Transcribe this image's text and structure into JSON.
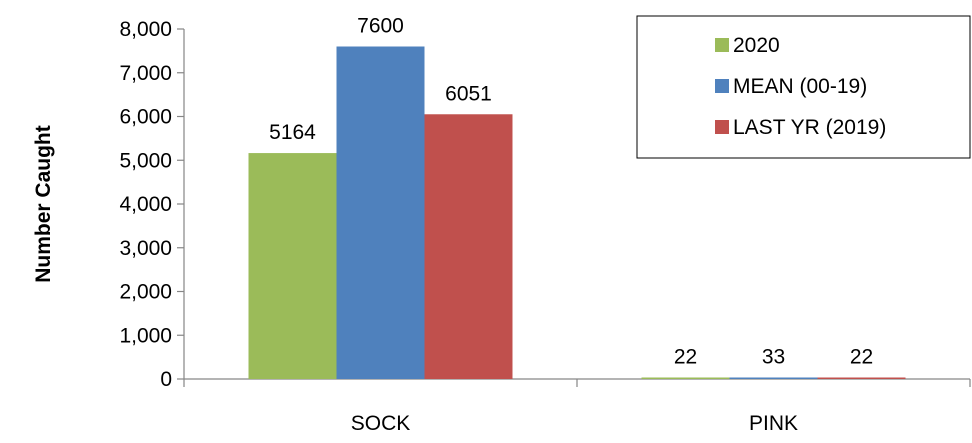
{
  "chart_data": {
    "type": "bar",
    "categories": [
      "SOCK",
      "PINK"
    ],
    "series": [
      {
        "name": "2020",
        "values": [
          5164,
          22
        ],
        "color": "#9bbb59",
        "labels": [
          "5164",
          "22"
        ]
      },
      {
        "name": "MEAN (00-19)",
        "values": [
          7600,
          33
        ],
        "color": "#4f81bd",
        "labels": [
          "7600",
          "33"
        ]
      },
      {
        "name": "LAST YR (2019)",
        "values": [
          6051,
          22
        ],
        "color": "#c0504d",
        "labels": [
          "6051",
          "22"
        ]
      }
    ],
    "ylabel": "Number Caught",
    "ylim": [
      0,
      8000
    ],
    "yticks": [
      0,
      1000,
      2000,
      3000,
      4000,
      5000,
      6000,
      7000,
      8000
    ],
    "ytick_labels": [
      "0",
      "1,000",
      "2,000",
      "3,000",
      "4,000",
      "5,000",
      "6,000",
      "7,000",
      "8,000"
    ],
    "grid": false,
    "legend_position": "top-right"
  }
}
